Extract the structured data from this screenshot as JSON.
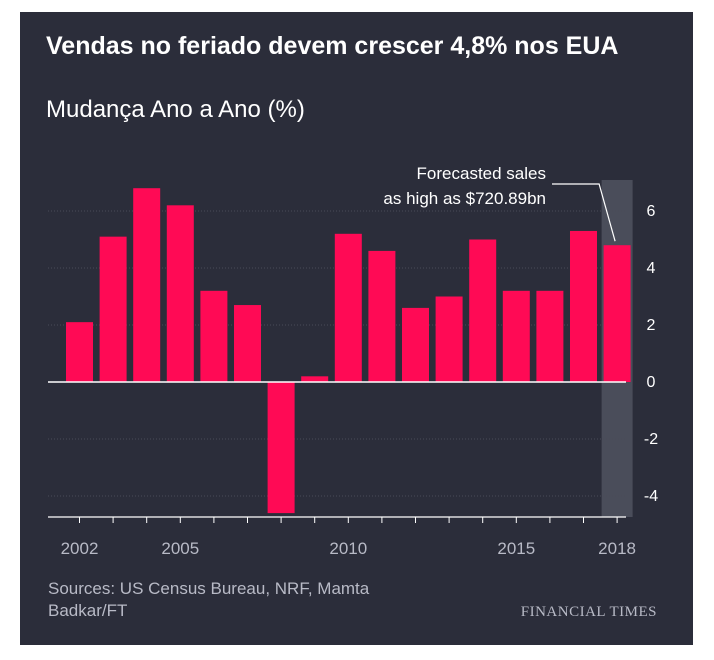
{
  "header": {
    "title": "Vendas no feriado devem crescer 4,8% nos EUA",
    "subtitle": "Mudança Ano a Ano (%)"
  },
  "footer": {
    "source": "Sources: US Census Bureau, NRF, Mamta Badkar/FT",
    "brand": "FINANCIAL TIMES"
  },
  "colors": {
    "background": "#2b2d3a",
    "bar": "#ff0a55",
    "highlight": "#4a4d5a",
    "grid": "#4a4c58",
    "text": "#ffffff",
    "muted": "#b8bac6"
  },
  "chart_data": {
    "type": "bar",
    "x": [
      2002,
      2003,
      2004,
      2005,
      2006,
      2007,
      2008,
      2009,
      2010,
      2011,
      2012,
      2013,
      2014,
      2015,
      2016,
      2017,
      2018
    ],
    "values": [
      2.1,
      5.1,
      6.8,
      6.2,
      3.2,
      2.7,
      -4.6,
      0.2,
      5.2,
      4.6,
      2.6,
      3.0,
      5.0,
      3.2,
      3.2,
      5.3,
      4.8
    ],
    "xticks": [
      "2002",
      "2005",
      "2010",
      "2015",
      "2018"
    ],
    "yticks": [
      "-4",
      "-2",
      "0",
      "2",
      "4",
      "6"
    ],
    "ylim": [
      -4.6,
      7
    ],
    "y_axis_side": "right",
    "grid": true,
    "highlight_year": 2018,
    "annotation": {
      "year": 2018,
      "lines": [
        "Forecasted sales",
        "as high as $720.89bn"
      ]
    }
  }
}
